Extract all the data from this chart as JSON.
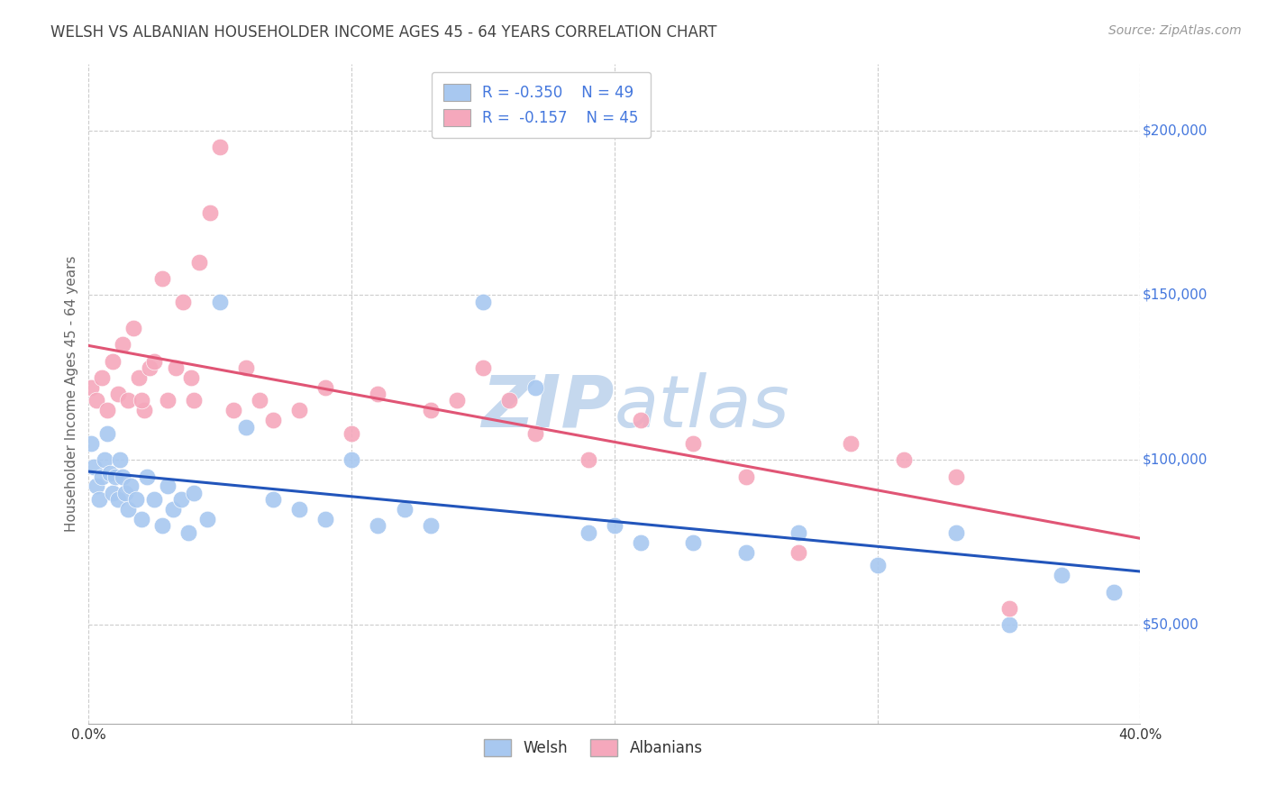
{
  "title": "WELSH VS ALBANIAN HOUSEHOLDER INCOME AGES 45 - 64 YEARS CORRELATION CHART",
  "source": "Source: ZipAtlas.com",
  "ylabel": "Householder Income Ages 45 - 64 years",
  "xlim": [
    0.0,
    0.4
  ],
  "ylim": [
    20000,
    220000
  ],
  "yticks": [
    50000,
    100000,
    150000,
    200000
  ],
  "xticks": [
    0.0,
    0.1,
    0.2,
    0.3,
    0.4
  ],
  "welsh_R": -0.35,
  "welsh_N": 49,
  "albanian_R": -0.157,
  "albanian_N": 45,
  "welsh_color": "#A8C8F0",
  "albanian_color": "#F5A8BC",
  "welsh_line_color": "#2255BB",
  "albanian_line_color": "#E05575",
  "background_color": "#FFFFFF",
  "grid_color": "#CCCCCC",
  "title_color": "#444444",
  "label_color": "#666666",
  "tick_label_color": "#4477DD",
  "watermark_color": "#C5D8EE",
  "welsh_x": [
    0.001,
    0.002,
    0.003,
    0.004,
    0.005,
    0.006,
    0.007,
    0.008,
    0.009,
    0.01,
    0.011,
    0.012,
    0.013,
    0.014,
    0.015,
    0.016,
    0.018,
    0.02,
    0.022,
    0.025,
    0.028,
    0.03,
    0.032,
    0.035,
    0.038,
    0.04,
    0.045,
    0.05,
    0.06,
    0.07,
    0.08,
    0.09,
    0.1,
    0.11,
    0.13,
    0.15,
    0.17,
    0.19,
    0.21,
    0.23,
    0.25,
    0.27,
    0.3,
    0.33,
    0.35,
    0.37,
    0.39,
    0.2,
    0.12
  ],
  "welsh_y": [
    105000,
    98000,
    92000,
    88000,
    95000,
    100000,
    108000,
    96000,
    90000,
    95000,
    88000,
    100000,
    95000,
    90000,
    85000,
    92000,
    88000,
    82000,
    95000,
    88000,
    80000,
    92000,
    85000,
    88000,
    78000,
    90000,
    82000,
    148000,
    110000,
    88000,
    85000,
    82000,
    100000,
    80000,
    80000,
    148000,
    122000,
    78000,
    75000,
    75000,
    72000,
    78000,
    68000,
    78000,
    50000,
    65000,
    60000,
    80000,
    85000
  ],
  "albanian_x": [
    0.001,
    0.003,
    0.005,
    0.007,
    0.009,
    0.011,
    0.013,
    0.015,
    0.017,
    0.019,
    0.021,
    0.023,
    0.025,
    0.028,
    0.03,
    0.033,
    0.036,
    0.039,
    0.042,
    0.046,
    0.05,
    0.055,
    0.06,
    0.065,
    0.07,
    0.08,
    0.09,
    0.1,
    0.11,
    0.13,
    0.15,
    0.16,
    0.17,
    0.19,
    0.21,
    0.23,
    0.25,
    0.27,
    0.29,
    0.31,
    0.33,
    0.35,
    0.04,
    0.02,
    0.14
  ],
  "albanian_y": [
    122000,
    118000,
    125000,
    115000,
    130000,
    120000,
    135000,
    118000,
    140000,
    125000,
    115000,
    128000,
    130000,
    155000,
    118000,
    128000,
    148000,
    125000,
    160000,
    175000,
    195000,
    115000,
    128000,
    118000,
    112000,
    115000,
    122000,
    108000,
    120000,
    115000,
    128000,
    118000,
    108000,
    100000,
    112000,
    105000,
    95000,
    72000,
    105000,
    100000,
    95000,
    55000,
    118000,
    118000,
    118000
  ]
}
